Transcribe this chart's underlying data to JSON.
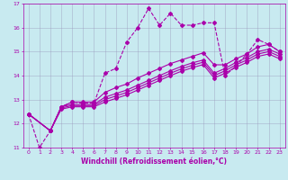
{
  "title": "",
  "xlabel": "Windchill (Refroidissement éolien,°C)",
  "ylabel": "",
  "bg_color": "#c8eaf0",
  "line_color": "#aa00aa",
  "xlim": [
    -0.5,
    23.5
  ],
  "ylim": [
    11,
    17
  ],
  "xticks": [
    0,
    1,
    2,
    3,
    4,
    5,
    6,
    7,
    8,
    9,
    10,
    11,
    12,
    13,
    14,
    15,
    16,
    17,
    18,
    19,
    20,
    21,
    22,
    23
  ],
  "yticks": [
    11,
    12,
    13,
    14,
    15,
    16,
    17
  ],
  "series": [
    {
      "x": [
        0,
        1,
        2,
        3,
        4,
        5,
        6,
        7,
        8,
        9,
        10,
        11,
        12,
        13,
        14,
        15,
        16,
        17,
        18,
        19,
        20,
        21,
        22,
        23
      ],
      "y": [
        12.4,
        11.0,
        11.7,
        12.7,
        12.9,
        12.85,
        12.85,
        14.1,
        14.3,
        15.4,
        16.0,
        16.8,
        16.1,
        16.6,
        16.1,
        16.1,
        16.2,
        16.2,
        14.0,
        14.4,
        14.9,
        15.5,
        15.3,
        15.0
      ],
      "linestyle": "--",
      "marker": "D",
      "markersize": 2.0,
      "linewidth": 0.8
    },
    {
      "x": [
        0,
        2,
        3,
        4,
        5,
        6,
        7,
        8,
        9,
        10,
        11,
        12,
        13,
        14,
        15,
        16,
        17,
        18,
        19,
        20,
        21,
        22,
        23
      ],
      "y": [
        12.4,
        11.7,
        12.7,
        12.9,
        12.9,
        12.9,
        13.3,
        13.5,
        13.65,
        13.9,
        14.1,
        14.3,
        14.5,
        14.65,
        14.8,
        14.95,
        14.45,
        14.45,
        14.7,
        14.9,
        15.2,
        15.3,
        15.0
      ],
      "linestyle": "-",
      "marker": "D",
      "markersize": 2.0,
      "linewidth": 0.8
    },
    {
      "x": [
        0,
        2,
        3,
        4,
        5,
        6,
        7,
        8,
        9,
        10,
        11,
        12,
        13,
        14,
        15,
        16,
        17,
        18,
        19,
        20,
        21,
        22,
        23
      ],
      "y": [
        12.4,
        11.7,
        12.7,
        12.8,
        12.8,
        12.8,
        13.1,
        13.25,
        13.4,
        13.6,
        13.8,
        14.0,
        14.2,
        14.38,
        14.53,
        14.65,
        14.1,
        14.3,
        14.55,
        14.75,
        15.0,
        15.1,
        14.9
      ],
      "linestyle": "-",
      "marker": "D",
      "markersize": 2.0,
      "linewidth": 0.8
    },
    {
      "x": [
        0,
        2,
        3,
        4,
        5,
        6,
        7,
        8,
        9,
        10,
        11,
        12,
        13,
        14,
        15,
        16,
        17,
        18,
        19,
        20,
        21,
        22,
        23
      ],
      "y": [
        12.4,
        11.7,
        12.65,
        12.75,
        12.75,
        12.75,
        13.0,
        13.15,
        13.3,
        13.5,
        13.7,
        13.9,
        14.1,
        14.28,
        14.43,
        14.56,
        14.0,
        14.2,
        14.45,
        14.65,
        14.9,
        15.0,
        14.8
      ],
      "linestyle": "-",
      "marker": "D",
      "markersize": 2.0,
      "linewidth": 0.8
    },
    {
      "x": [
        0,
        2,
        3,
        4,
        5,
        6,
        7,
        8,
        9,
        10,
        11,
        12,
        13,
        14,
        15,
        16,
        17,
        18,
        19,
        20,
        21,
        22,
        23
      ],
      "y": [
        12.4,
        11.7,
        12.6,
        12.7,
        12.7,
        12.7,
        12.9,
        13.05,
        13.2,
        13.4,
        13.6,
        13.8,
        14.0,
        14.18,
        14.33,
        14.46,
        13.9,
        14.1,
        14.35,
        14.55,
        14.8,
        14.9,
        14.7
      ],
      "linestyle": "-",
      "marker": "D",
      "markersize": 2.0,
      "linewidth": 0.8
    }
  ],
  "grid_color": "#9999bb",
  "grid_alpha": 0.7,
  "tick_fontsize": 4.5,
  "xlabel_fontsize": 5.5,
  "tick_color": "#aa00aa",
  "spine_color": "#aa00aa"
}
